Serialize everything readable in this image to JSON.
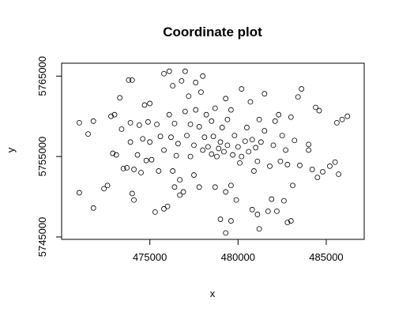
{
  "chart_data": {
    "type": "scatter",
    "title": "Coordinate plot",
    "x_label": "x",
    "y_label": "y",
    "xlim": [
      470000,
      487150
    ],
    "ylim": [
      5744700,
      5766600
    ],
    "xticks": [
      475000,
      480000,
      485000
    ],
    "yticks": [
      5745000,
      5755000,
      5765000
    ],
    "series": [
      {
        "color": "#000000",
        "x": [
          471000,
          471500,
          471800,
          471000,
          471800,
          472400,
          472600,
          472800,
          473000,
          472900,
          473100,
          473300,
          473500,
          473700,
          473400,
          473900,
          473800,
          474000,
          474000,
          474100,
          473900,
          474100,
          474400,
          474300,
          474600,
          474700,
          474800,
          474500,
          474900,
          475000,
          475100,
          475400,
          475600,
          475800,
          475500,
          475800,
          476000,
          475300,
          475800,
          476100,
          476300,
          476100,
          476400,
          476200,
          476600,
          476500,
          476300,
          476700,
          476400,
          476900,
          476800,
          477000,
          477200,
          477000,
          477300,
          477100,
          477500,
          477300,
          477600,
          477800,
          477600,
          477900,
          477800,
          477500,
          478100,
          478300,
          478000,
          478500,
          478200,
          478500,
          478700,
          478600,
          478900,
          479000,
          478800,
          479200,
          479400,
          479100,
          479400,
          479600,
          479300,
          479800,
          479700,
          480000,
          480200,
          480400,
          480100,
          480600,
          480800,
          480500,
          481000,
          481100,
          480900,
          481300,
          481500,
          481200,
          480700,
          480200,
          479600,
          479300,
          479900,
          479000,
          479300,
          479600,
          478700,
          481800,
          481700,
          481900,
          482100,
          482300,
          482000,
          482500,
          482700,
          482400,
          482800,
          483000,
          483200,
          483400,
          483600,
          483100,
          483500,
          482600,
          482800,
          483000,
          482200,
          481200,
          480800,
          481100,
          484000,
          484200,
          484400,
          484600,
          484000,
          484500,
          484800,
          485200,
          485600,
          485900,
          486200,
          485500,
          485700,
          476700,
          475000,
          481500,
          478000
        ],
        "y": [
          5759200,
          5757800,
          5759400,
          5750500,
          5748600,
          5751000,
          5751400,
          5760000,
          5760200,
          5755400,
          5755200,
          5762300,
          5753500,
          5753600,
          5758400,
          5759200,
          5764500,
          5764500,
          5750400,
          5749600,
          5756800,
          5753400,
          5758900,
          5755200,
          5757200,
          5761400,
          5754500,
          5753000,
          5759300,
          5756800,
          5754600,
          5759000,
          5757500,
          5755800,
          5753200,
          5748500,
          5748800,
          5748100,
          5765300,
          5765600,
          5763800,
          5760200,
          5759100,
          5757400,
          5756600,
          5755100,
          5753200,
          5752100,
          5751200,
          5750600,
          5764400,
          5765600,
          5762500,
          5760600,
          5759000,
          5757600,
          5756400,
          5755000,
          5760800,
          5758700,
          5764200,
          5763000,
          5751200,
          5752700,
          5757400,
          5756200,
          5755800,
          5755300,
          5760200,
          5759400,
          5761000,
          5757500,
          5756000,
          5756800,
          5755000,
          5755600,
          5756400,
          5758600,
          5759600,
          5760800,
          5762200,
          5757600,
          5755200,
          5756200,
          5755000,
          5756900,
          5754200,
          5755600,
          5757100,
          5758600,
          5756100,
          5754400,
          5753200,
          5756800,
          5758200,
          5759600,
          5761800,
          5763400,
          5751400,
          5750600,
          5749600,
          5747200,
          5745500,
          5747000,
          5751200,
          5753800,
          5748200,
          5749700,
          5759400,
          5760200,
          5756400,
          5757600,
          5755800,
          5754400,
          5754000,
          5759900,
          5757000,
          5762400,
          5763400,
          5751400,
          5753900,
          5749500,
          5746800,
          5747000,
          5748200,
          5746000,
          5748400,
          5747800,
          5755800,
          5753400,
          5761100,
          5760700,
          5756500,
          5752400,
          5753100,
          5753800,
          5759200,
          5759600,
          5760000,
          5754300,
          5752800,
          5750200,
          5761600,
          5762800,
          5765000
        ]
      }
    ]
  }
}
